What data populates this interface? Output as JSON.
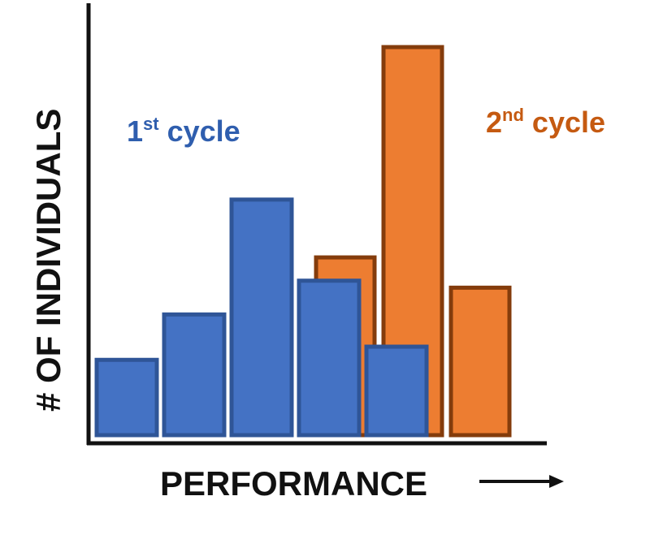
{
  "chart_data": {
    "type": "bar",
    "xlabel": "PERFORMANCE",
    "ylabel": "# OF INDIVIDUALS",
    "ylim": [
      0,
      10
    ],
    "grid": false,
    "series": [
      {
        "name": "1st cycle",
        "label_main": "1",
        "label_sup": "st",
        "label_rest": " cycle",
        "color": "#4472C4",
        "edge": "#2F5597",
        "text_color": "#2F5EAE",
        "values": [
          1.94,
          3.11,
          6.07,
          3.98,
          2.28
        ]
      },
      {
        "name": "2nd cycle",
        "label_main": "2",
        "label_sup": "nd",
        "label_rest": " cycle",
        "color": "#ED7D31",
        "edge": "#843C0C",
        "text_color": "#C55A11",
        "values": [
          4.58,
          10.0,
          3.8
        ]
      }
    ]
  }
}
